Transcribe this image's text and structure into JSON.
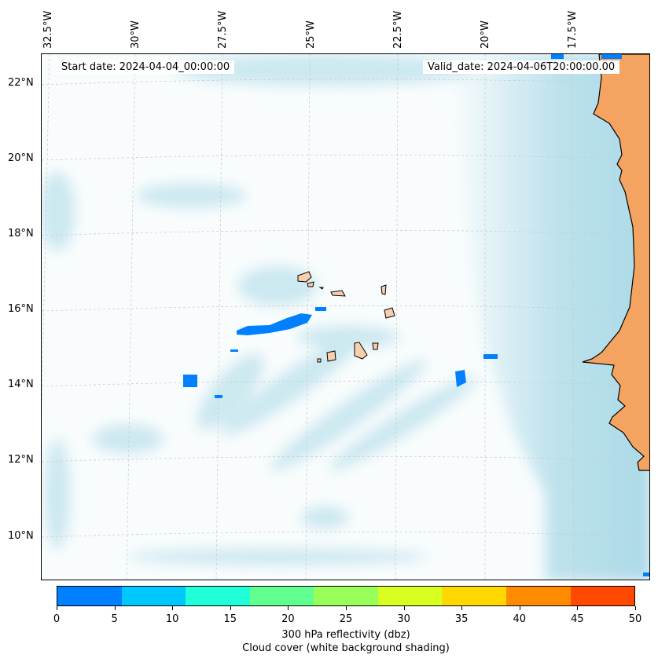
{
  "header": {
    "start_date": "Start date: 2024-04-04_00:00:00",
    "valid_date": "Valid_date: 2024-04-06T20:00:00.00"
  },
  "axes": {
    "lon_labels": [
      "32.5°W",
      "30°W",
      "27.5°W",
      "25°W",
      "22.5°W",
      "20°W",
      "17.5°W"
    ],
    "lat_labels": [
      "22°N",
      "20°N",
      "18°N",
      "16°N",
      "14°N",
      "12°N",
      "10°N"
    ]
  },
  "colorbar": {
    "ticks": [
      "0",
      "5",
      "10",
      "15",
      "20",
      "25",
      "30",
      "35",
      "40",
      "45",
      "50"
    ],
    "colors": [
      "#0080ff",
      "#00c8ff",
      "#20ffd8",
      "#60ff90",
      "#98ff58",
      "#d8ff20",
      "#ffd800",
      "#ff8c00",
      "#ff4800"
    ],
    "label_line1": "300 hPa reflectivity (dbz)",
    "label_line2": "Cloud cover (white background shading)"
  },
  "map": {
    "land_color": "#f4a460",
    "island_color": "#f8cfae",
    "cloud_color": "#a8d8e6",
    "reflectivity_color": "#0080ff",
    "features": [
      "african-coast",
      "cape-verde-islands",
      "reflectivity-cells",
      "cloud-shading"
    ]
  }
}
